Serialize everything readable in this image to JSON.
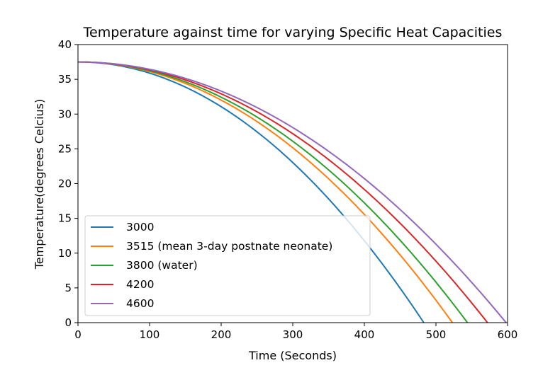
{
  "chart_data": {
    "type": "line",
    "title": "Temperature against time for varying Specific Heat Capacities",
    "xlabel": "Time (Seconds)",
    "ylabel": "Temperature(degrees Celcius)",
    "xlim": [
      0,
      600
    ],
    "ylim": [
      0,
      40
    ],
    "xticks": [
      0,
      100,
      200,
      300,
      400,
      500,
      600
    ],
    "yticks": [
      0,
      5,
      10,
      15,
      20,
      25,
      30,
      35,
      40
    ],
    "grid": false,
    "legend_position": "lower-left",
    "initial_temperature": 37.5,
    "series": [
      {
        "name": "3000",
        "color": "#1f77b4",
        "end_time": 483
      },
      {
        "name": "3515 (mean 3-day postnate neonate)",
        "color": "#ff7f0e",
        "end_time": 523
      },
      {
        "name": "3800 (water)",
        "color": "#2ca02c",
        "end_time": 544
      },
      {
        "name": "4200",
        "color": "#d62728",
        "end_time": 572
      },
      {
        "name": "4600",
        "color": "#9467bd",
        "end_time": 598
      }
    ]
  }
}
